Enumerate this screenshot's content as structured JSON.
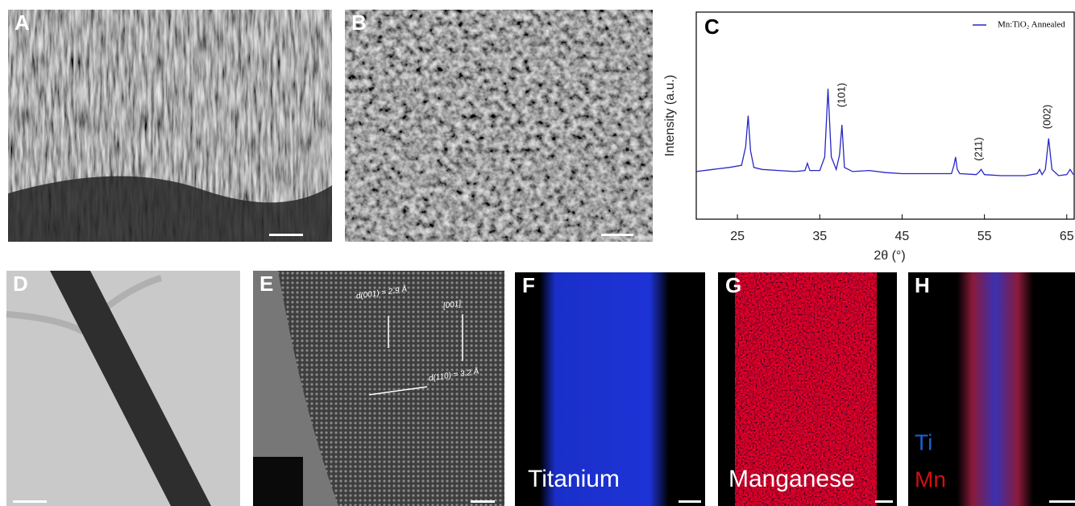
{
  "panel_labels": [
    "A",
    "B",
    "C",
    "D",
    "E",
    "F",
    "G",
    "H"
  ],
  "chart_data": {
    "type": "line",
    "x_label": "2θ (°)",
    "y_label": "Intensity (a.u.)",
    "xlim": [
      20,
      66
    ],
    "ylim": [
      0,
      100
    ],
    "xticks": [
      25,
      35,
      45,
      55,
      65
    ],
    "series": [
      {
        "name": "Mn:TiO₂ Annealed",
        "color": "#2626c8",
        "x": [
          20,
          22,
          24,
          25.5,
          26,
          26.3,
          26.6,
          27,
          28,
          30,
          32,
          33.2,
          33.5,
          33.8,
          35,
          35.6,
          36,
          36.4,
          37,
          37.4,
          37.7,
          38,
          39,
          41,
          43,
          45,
          48,
          51,
          51.3,
          51.5,
          51.7,
          52,
          54,
          54.4,
          54.6,
          55,
          57,
          60,
          61.4,
          61.7,
          62,
          62.4,
          62.8,
          63.2,
          64,
          65,
          65.4,
          65.8
        ],
        "values": [
          23,
          24,
          25,
          26,
          35,
          50,
          33,
          25,
          24,
          23.5,
          23,
          23.5,
          27,
          23.5,
          23.5,
          30,
          63,
          30,
          24,
          31,
          45.5,
          25,
          23,
          23.5,
          22.5,
          22,
          22,
          22,
          26,
          30,
          24,
          22,
          21.5,
          23,
          24,
          21.5,
          21,
          21,
          22,
          24,
          21.5,
          24,
          39,
          24,
          21,
          21.5,
          24,
          21.5
        ]
      }
    ],
    "annotations": [
      "(101)",
      "(211)",
      "(002)"
    ]
  },
  "panel_e": {
    "labels": [
      "d(001) = 2.9 Å",
      "[001]",
      "d(110) = 3.2 Å"
    ]
  },
  "panel_f": {
    "label": "Titanium"
  },
  "panel_g": {
    "label": "Manganese"
  },
  "panel_h": {
    "legend": [
      "Ti",
      "Mn"
    ]
  }
}
